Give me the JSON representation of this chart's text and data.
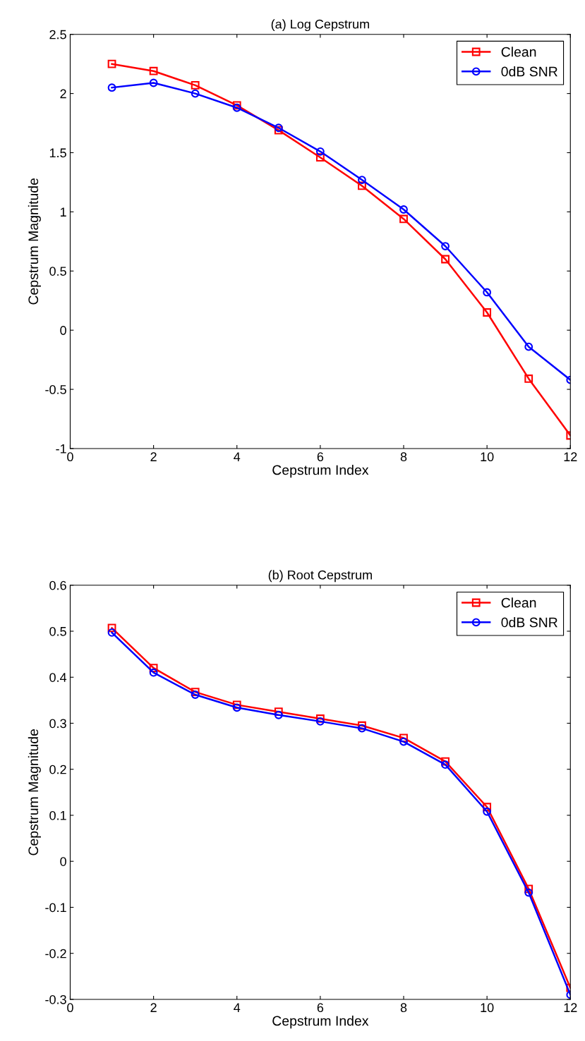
{
  "chart_data": [
    {
      "type": "line",
      "title": "(a) Log Cepstrum",
      "xlabel": "Cepstrum Index",
      "ylabel": "Cepstrum Magnitude",
      "x": [
        1,
        2,
        3,
        4,
        5,
        6,
        7,
        8,
        9,
        10,
        11,
        12
      ],
      "series": [
        {
          "name": "Clean",
          "color": "#ff0000",
          "marker": "square",
          "values": [
            2.25,
            2.19,
            2.07,
            1.9,
            1.69,
            1.46,
            1.22,
            0.94,
            0.6,
            0.15,
            -0.41,
            -0.89
          ]
        },
        {
          "name": "0dB SNR",
          "color": "#0000ff",
          "marker": "circle",
          "values": [
            2.05,
            2.09,
            2.0,
            1.88,
            1.71,
            1.51,
            1.27,
            1.02,
            0.71,
            0.32,
            -0.14,
            -0.42
          ]
        }
      ],
      "xlim": [
        0,
        12
      ],
      "xticks": [
        0,
        2,
        4,
        6,
        8,
        10,
        12
      ],
      "ylim": [
        -1,
        2.5
      ],
      "yticks": [
        -1,
        -0.5,
        0,
        0.5,
        1,
        1.5,
        2,
        2.5
      ],
      "grid": false,
      "legend": "top right",
      "line_style": "solid"
    },
    {
      "type": "line",
      "title": "(b) Root Cepstrum",
      "xlabel": "Cepstrum Index",
      "ylabel": "Cepstrum Magnitude",
      "x": [
        1,
        2,
        3,
        4,
        5,
        6,
        7,
        8,
        9,
        10,
        11,
        12
      ],
      "series": [
        {
          "name": "Clean",
          "color": "#ff0000",
          "marker": "square",
          "values": [
            0.507,
            0.42,
            0.368,
            0.34,
            0.325,
            0.31,
            0.295,
            0.268,
            0.217,
            0.118,
            -0.06,
            -0.275
          ]
        },
        {
          "name": "0dB SNR",
          "color": "#0000ff",
          "marker": "circle",
          "values": [
            0.497,
            0.41,
            0.362,
            0.334,
            0.318,
            0.304,
            0.289,
            0.26,
            0.21,
            0.108,
            -0.068,
            -0.29
          ]
        }
      ],
      "xlim": [
        0,
        12
      ],
      "xticks": [
        0,
        2,
        4,
        6,
        8,
        10,
        12
      ],
      "ylim": [
        -0.3,
        0.6
      ],
      "yticks": [
        -0.3,
        -0.2,
        -0.1,
        0,
        0.1,
        0.2,
        0.3,
        0.4,
        0.5,
        0.6
      ],
      "grid": false,
      "legend": "top right",
      "line_style": "solid"
    }
  ]
}
